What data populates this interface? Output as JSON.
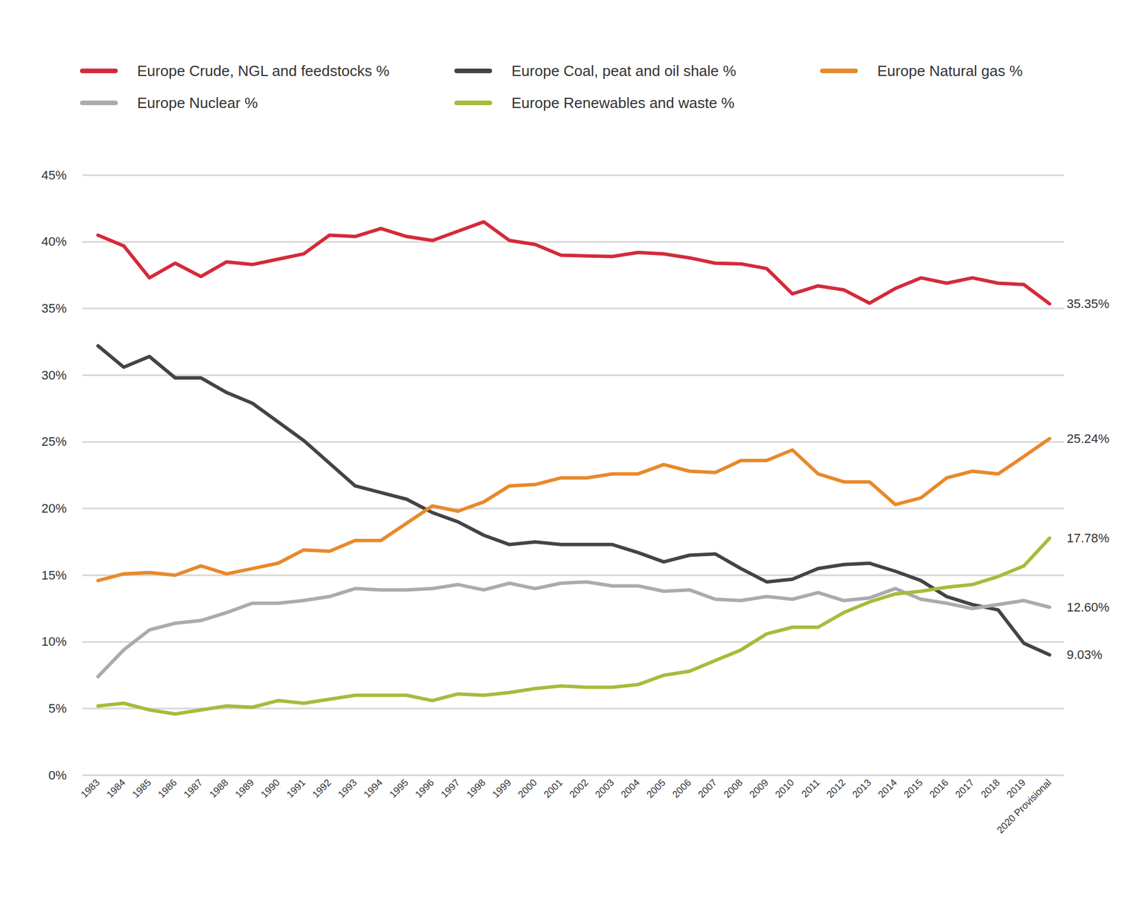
{
  "chart_data": {
    "type": "line",
    "x": [
      "1983",
      "1984",
      "1985",
      "1986",
      "1987",
      "1988",
      "1989",
      "1990",
      "1991",
      "1992",
      "1993",
      "1994",
      "1995",
      "1996",
      "1997",
      "1998",
      "1999",
      "2000",
      "2001",
      "2002",
      "2003",
      "2004",
      "2005",
      "2006",
      "2007",
      "2008",
      "2009",
      "2010",
      "2011",
      "2012",
      "2013",
      "2014",
      "2015",
      "2016",
      "2017",
      "2018",
      "2019",
      "2020 Provisional"
    ],
    "series": [
      {
        "name": "Europe Crude, NGL and feedstocks %",
        "color": "#d42a3a",
        "values": [
          40.5,
          39.7,
          37.3,
          38.4,
          37.4,
          38.5,
          38.3,
          38.7,
          39.1,
          40.5,
          40.4,
          41.0,
          40.4,
          40.1,
          40.8,
          41.5,
          40.1,
          39.8,
          39.0,
          38.95,
          38.9,
          39.2,
          39.1,
          38.8,
          38.4,
          38.35,
          38.0,
          36.1,
          36.7,
          36.4,
          35.4,
          36.5,
          37.3,
          36.9,
          37.3,
          36.9,
          36.8,
          35.35
        ]
      },
      {
        "name": "Europe Coal, peat and oil shale %",
        "color": "#444444",
        "values": [
          32.2,
          30.6,
          31.4,
          29.8,
          29.8,
          28.7,
          27.9,
          26.5,
          25.1,
          23.4,
          21.7,
          21.2,
          20.7,
          19.7,
          19.0,
          18.0,
          17.3,
          17.5,
          17.3,
          17.3,
          17.3,
          16.7,
          16.0,
          16.5,
          16.6,
          15.5,
          14.5,
          14.7,
          15.5,
          15.8,
          15.9,
          15.3,
          14.6,
          13.4,
          12.8,
          12.4,
          9.9,
          9.03
        ]
      },
      {
        "name": "Europe Natural gas %",
        "color": "#e8892a",
        "values": [
          14.6,
          15.1,
          15.2,
          15.0,
          15.7,
          15.1,
          15.5,
          15.9,
          16.9,
          16.8,
          17.6,
          17.6,
          18.9,
          20.2,
          19.8,
          20.5,
          21.7,
          21.8,
          22.3,
          22.3,
          22.6,
          22.6,
          23.3,
          22.8,
          22.7,
          23.6,
          23.6,
          24.4,
          22.6,
          22.0,
          22.0,
          20.3,
          20.8,
          22.3,
          22.8,
          22.6,
          23.9,
          25.24
        ]
      },
      {
        "name": "Europe Nuclear %",
        "color": "#aaaaaf",
        "values": [
          7.4,
          9.4,
          10.9,
          11.4,
          11.6,
          12.2,
          12.9,
          12.9,
          13.1,
          13.4,
          14.0,
          13.9,
          13.9,
          14.0,
          14.3,
          13.9,
          14.4,
          14.0,
          14.4,
          14.5,
          14.2,
          14.2,
          13.8,
          13.9,
          13.2,
          13.1,
          13.4,
          13.2,
          13.7,
          13.1,
          13.3,
          14.0,
          13.2,
          12.9,
          12.5,
          12.8,
          13.1,
          12.6
        ]
      },
      {
        "name": "Europe Renewables and waste %",
        "color": "#a3bd3a",
        "values": [
          5.2,
          5.4,
          4.9,
          4.6,
          4.9,
          5.2,
          5.1,
          5.6,
          5.4,
          5.7,
          6.0,
          6.0,
          6.0,
          5.6,
          6.1,
          6.0,
          6.2,
          6.5,
          6.7,
          6.6,
          6.6,
          6.8,
          7.5,
          7.8,
          8.6,
          9.4,
          10.6,
          11.1,
          11.1,
          12.2,
          13.0,
          13.6,
          13.8,
          14.1,
          14.3,
          14.9,
          15.7,
          17.78
        ]
      }
    ],
    "ylim": [
      0,
      45
    ],
    "yticks": [
      {
        "value": 0,
        "label": "0%"
      },
      {
        "value": 5,
        "label": "5%"
      },
      {
        "value": 10,
        "label": "10%"
      },
      {
        "value": 15,
        "label": "15%"
      },
      {
        "value": 20,
        "label": "20%"
      },
      {
        "value": 25,
        "label": "25%"
      },
      {
        "value": 30,
        "label": "30%"
      },
      {
        "value": 35,
        "label": "35%"
      },
      {
        "value": 40,
        "label": "40%"
      },
      {
        "value": 45,
        "label": "45%"
      }
    ],
    "grid": true,
    "legend": "top",
    "annotations": [
      {
        "x": "2020 Provisional",
        "y": 35.35,
        "text": "35.35%"
      },
      {
        "x": "2020 Provisional",
        "y": 25.24,
        "text": "25.24%"
      },
      {
        "x": "2020 Provisional",
        "y": 17.78,
        "text": "17.78%"
      },
      {
        "x": "2020 Provisional",
        "y": 12.6,
        "text": "12.60%"
      },
      {
        "x": "2020 Provisional",
        "y": 9.03,
        "text": "9.03%"
      }
    ]
  }
}
